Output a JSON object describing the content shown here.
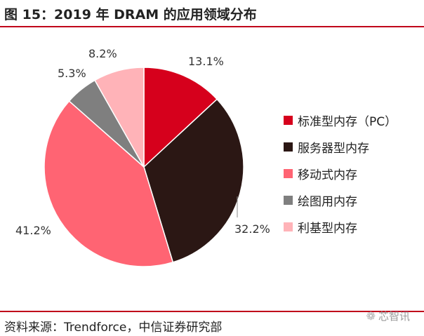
{
  "title": "图 15：2019 年 DRAM 的应用领域分布",
  "source": "资料来源：Trendforce，中信证券研究部",
  "watermark": "芯智讯",
  "chart_data": {
    "type": "pie",
    "title": "图 15：2019 年 DRAM 的应用领域分布",
    "legend_position": "right",
    "slices": [
      {
        "label": "标准型内存（PC）",
        "value": 13.1,
        "value_label": "13.1%",
        "color": "#d6001c"
      },
      {
        "label": "服务器型内存",
        "value": 32.2,
        "value_label": "32.2%",
        "color": "#2b1714"
      },
      {
        "label": "移动式内存",
        "value": 41.2,
        "value_label": "41.2%",
        "color": "#ff6473"
      },
      {
        "label": "绘图用内存",
        "value": 5.3,
        "value_label": "5.3%",
        "color": "#7f7f7f"
      },
      {
        "label": "利基型内存",
        "value": 8.2,
        "value_label": "8.2%",
        "color": "#ffb3b8"
      }
    ]
  }
}
